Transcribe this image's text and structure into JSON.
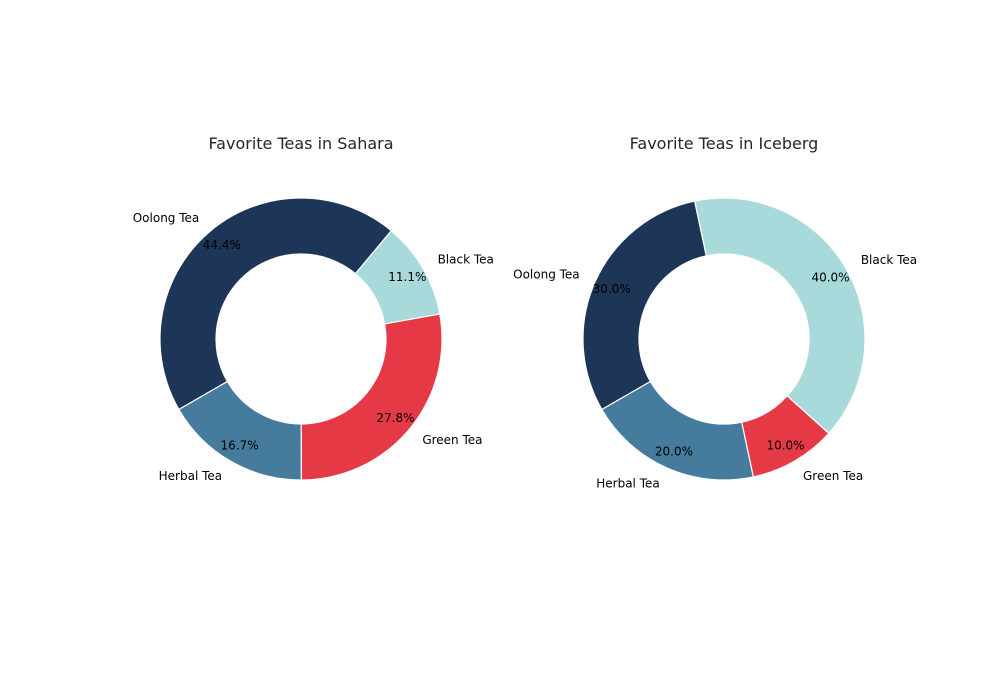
{
  "chart_data": [
    {
      "type": "pie",
      "style": "donut",
      "title": "Favorite Teas in Sahara",
      "categories": [
        "Oolong Tea",
        "Black Tea",
        "Green Tea",
        "Herbal Tea"
      ],
      "values": [
        44.4,
        11.1,
        27.8,
        16.7
      ],
      "percent_labels": [
        "44.4%",
        "11.1%",
        "27.8%",
        "16.7%"
      ],
      "colors": [
        "#1d3557",
        "#a8dadc",
        "#e63946",
        "#457b9d"
      ]
    },
    {
      "type": "pie",
      "style": "donut",
      "title": "Favorite Teas in Iceberg",
      "categories": [
        "Oolong Tea",
        "Black Tea",
        "Green Tea",
        "Herbal Tea"
      ],
      "values": [
        30.0,
        40.0,
        10.0,
        20.0
      ],
      "percent_labels": [
        "30.0%",
        "40.0%",
        "10.0%",
        "20.0%"
      ],
      "colors": [
        "#1d3557",
        "#a8dadc",
        "#e63946",
        "#457b9d"
      ]
    }
  ]
}
